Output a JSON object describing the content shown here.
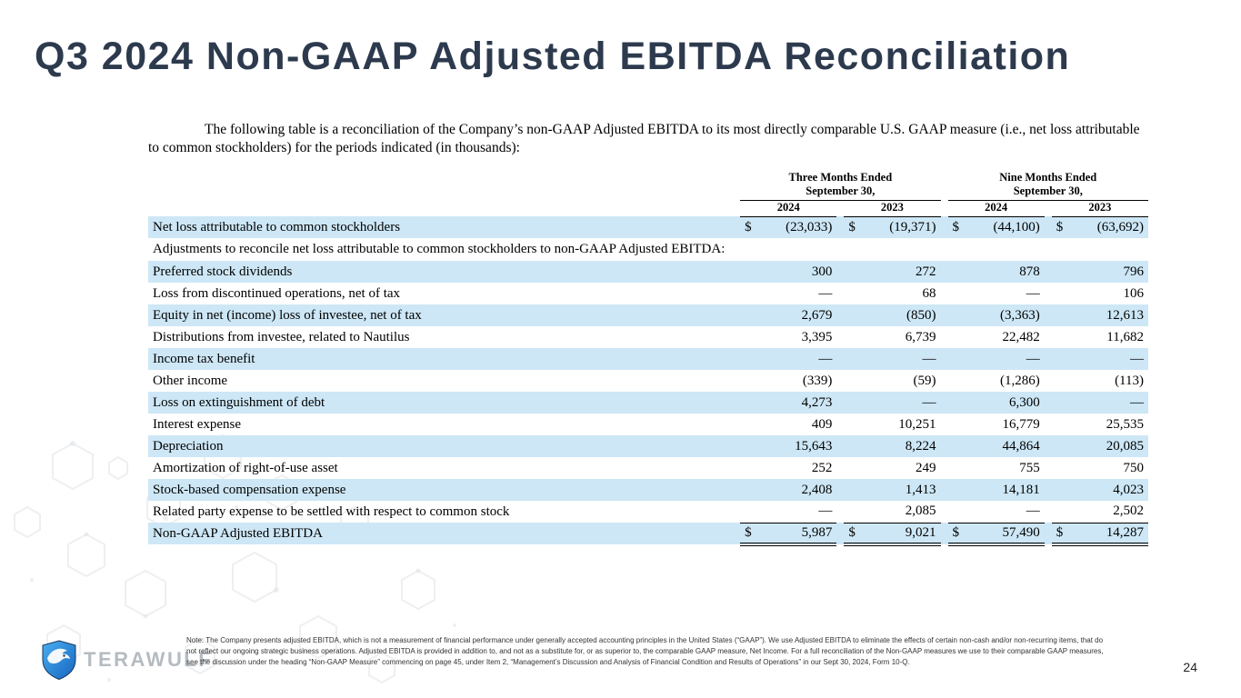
{
  "slide": {
    "title": "Q3 2024 Non-GAAP Adjusted EBITDA Reconciliation",
    "intro": "The following table is a reconciliation of the Company’s non-GAAP Adjusted EBITDA to its most directly comparable U.S. GAAP measure (i.e., net loss attributable to common stockholders) for the periods indicated (in thousands):",
    "note": "Note: The Company presents adjusted EBITDA, which is not a measurement of financial performance under generally accepted accounting principles in the United States (“GAAP”). We use Adjusted EBITDA to eliminate the effects of certain non-cash and/or non-recurring items, that do not reflect our ongoing strategic business operations. Adjusted EBITDA is provided in addition to, and not as a substitute for, or as superior to, the comparable GAAP measure, Net Income. For a full reconciliation of the Non-GAAP measures we use to their comparable GAAP measures, see the discussion under the heading “Non-GAAP Measure” commencing on page 45, under Item 2, “Management’s Discussion and Analysis of Financial Condition and Results of Operations” in our Sept 30, 2024, Form 10-Q.",
    "page_number": "24",
    "logo_text": "TERAWULF"
  },
  "colors": {
    "title_navy": "#2d3a4e",
    "row_highlight_blue": "#cde7f6",
    "logo_text_gray": "#b5bbc1",
    "logo_shield_blue_light": "#3fa9f5",
    "logo_shield_blue_dark": "#1565c0"
  },
  "table": {
    "currency_symbol": "$",
    "groups": [
      {
        "line1": "Three Months Ended",
        "line2": "September 30,",
        "years": [
          "2024",
          "2023"
        ]
      },
      {
        "line1": "Nine Months Ended",
        "line2": "September 30,",
        "years": [
          "2024",
          "2023"
        ]
      }
    ],
    "rows": [
      {
        "label": "Net loss attributable to common stockholders",
        "dollar": true,
        "alt": true,
        "values": [
          "(23,033)",
          "(19,371)",
          "(44,100)",
          "(63,692)"
        ]
      },
      {
        "label": "Adjustments to reconcile net loss attributable to common stockholders to non-GAAP Adjusted EBITDA:",
        "section": true,
        "alt": false
      },
      {
        "label": "Preferred stock dividends",
        "alt": true,
        "values": [
          "300",
          "272",
          "878",
          "796"
        ]
      },
      {
        "label": "Loss from discontinued operations, net of tax",
        "alt": false,
        "values": [
          "—",
          "68",
          "—",
          "106"
        ]
      },
      {
        "label": "Equity in net (income) loss of investee, net of tax",
        "alt": true,
        "values": [
          "2,679",
          "(850)",
          "(3,363)",
          "12,613"
        ]
      },
      {
        "label": "Distributions from investee, related to Nautilus",
        "alt": false,
        "values": [
          "3,395",
          "6,739",
          "22,482",
          "11,682"
        ]
      },
      {
        "label": "Income tax benefit",
        "alt": true,
        "values": [
          "—",
          "—",
          "—",
          "—"
        ]
      },
      {
        "label": "Other income",
        "alt": false,
        "values": [
          "(339)",
          "(59)",
          "(1,286)",
          "(113)"
        ]
      },
      {
        "label": "Loss on extinguishment of debt",
        "alt": true,
        "values": [
          "4,273",
          "—",
          "6,300",
          "—"
        ]
      },
      {
        "label": "Interest expense",
        "alt": false,
        "values": [
          "409",
          "10,251",
          "16,779",
          "25,535"
        ]
      },
      {
        "label": "Depreciation",
        "alt": true,
        "values": [
          "15,643",
          "8,224",
          "44,864",
          "20,085"
        ]
      },
      {
        "label": "Amortization of right-of-use asset",
        "alt": false,
        "values": [
          "252",
          "249",
          "755",
          "750"
        ]
      },
      {
        "label": "Stock-based compensation expense",
        "alt": true,
        "values": [
          "2,408",
          "1,413",
          "14,181",
          "4,023"
        ]
      },
      {
        "label": "Related party expense to be settled with respect to common stock",
        "alt": false,
        "values": [
          "—",
          "2,085",
          "—",
          "2,502"
        ]
      },
      {
        "label": "Non-GAAP Adjusted EBITDA",
        "dollar": true,
        "alt": true,
        "total": true,
        "values": [
          "5,987",
          "9,021",
          "57,490",
          "14,287"
        ]
      }
    ]
  }
}
